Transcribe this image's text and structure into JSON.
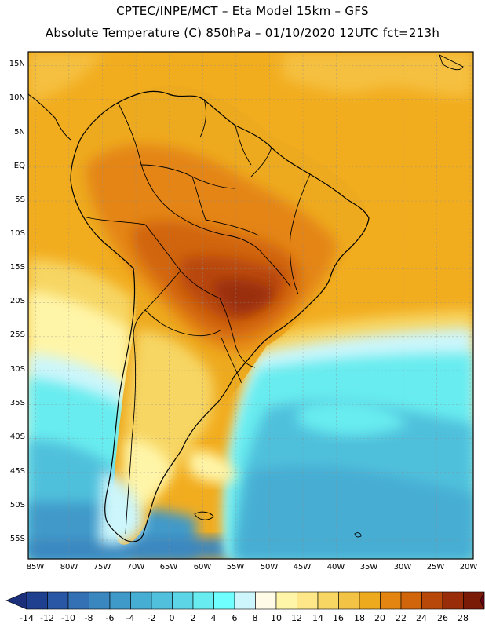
{
  "header": {
    "line1": "CPTEC/INPE/MCT –  Eta Model 15km – GFS",
    "line2": "Absolute Temperature (C) 850hPa – 01/10/2020 12UTC fct=213h"
  },
  "map": {
    "region": "South America",
    "lat_labels": [
      "15N",
      "10N",
      "5N",
      "EQ",
      "5S",
      "10S",
      "15S",
      "20S",
      "25S",
      "30S",
      "35S",
      "40S",
      "45S",
      "50S",
      "55S"
    ],
    "lon_labels": [
      "85W",
      "80W",
      "75W",
      "70W",
      "65W",
      "60W",
      "55W",
      "50W",
      "45W",
      "40W",
      "35W",
      "30W",
      "25W",
      "20W"
    ]
  },
  "colorbar": {
    "labels": [
      "-14",
      "-12",
      "-10",
      "-8",
      "-6",
      "-4",
      "-2",
      "0",
      "2",
      "4",
      "6",
      "8",
      "10",
      "12",
      "14",
      "16",
      "18",
      "20",
      "22",
      "24",
      "26",
      "28"
    ],
    "colors": [
      "#1f3f8f",
      "#2a56a6",
      "#3470b4",
      "#3a86bf",
      "#3f99c9",
      "#46add3",
      "#50c0dc",
      "#5cd6e6",
      "#68ecef",
      "#70ffff",
      "#ccf6fb",
      "#fffbe6",
      "#fff5a8",
      "#fde789",
      "#f7d664",
      "#f2c345",
      "#eeaa1f",
      "#e48512",
      "#d1650c",
      "#b8470a",
      "#9a2d09",
      "#7a1b08"
    ],
    "low_arrow_color": "#1b2f7a",
    "high_arrow_color": "#700010"
  }
}
